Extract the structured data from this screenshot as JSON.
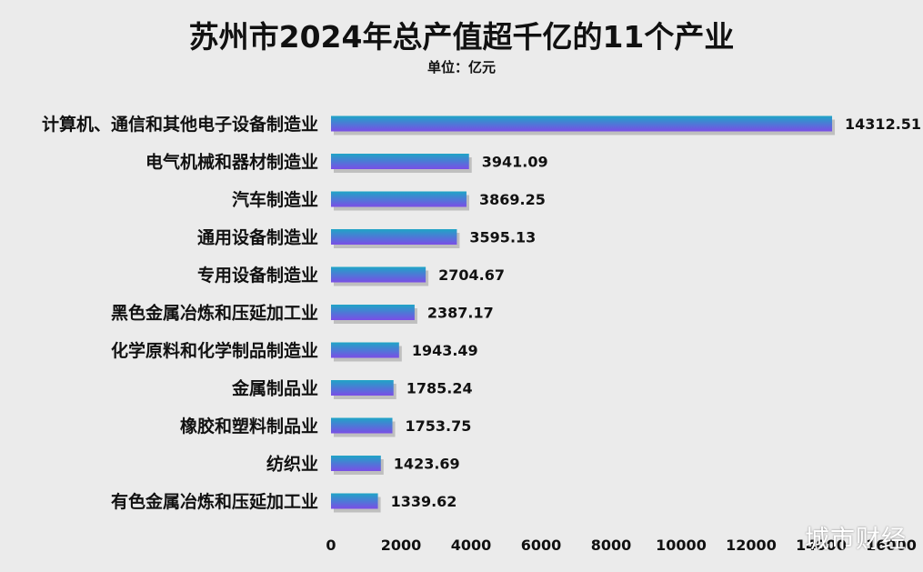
{
  "title": "苏州市2024年总产值超千亿的11个产业",
  "subtitle": "单位：亿元",
  "watermark": "城市财经",
  "chart_data": {
    "type": "bar",
    "orientation": "horizontal",
    "title": "苏州市2024年总产值超千亿的11个产业",
    "unit": "亿元",
    "categories": [
      "计算机、通信和其他电子设备制造业",
      "电气机械和器材制造业",
      "汽车制造业",
      "通用设备制造业",
      "专用设备制造业",
      "黑色金属冶炼和压延加工业",
      "化学原料和化学制品制造业",
      "金属制品业",
      "橡胶和塑料制品业",
      "纺织业",
      "有色金属冶炼和压延加工业"
    ],
    "values": [
      14312.51,
      3941.09,
      3869.25,
      3595.13,
      2704.67,
      2387.17,
      1943.49,
      1785.24,
      1753.75,
      1423.69,
      1339.62
    ],
    "value_labels": [
      "14312.51",
      "3941.09",
      "3869.25",
      "3595.13",
      "2704.67",
      "2387.17",
      "1943.49",
      "1785.24",
      "1753.75",
      "1423.69",
      "1339.62"
    ],
    "xlim": [
      0,
      16000
    ],
    "xticks": [
      0,
      2000,
      4000,
      6000,
      8000,
      10000,
      12000,
      14000,
      16000
    ],
    "grid": false,
    "bar_color_start": "#1fa5c6",
    "bar_color_end": "#7a4ee6",
    "shadow_color": "#9a9a9a"
  }
}
